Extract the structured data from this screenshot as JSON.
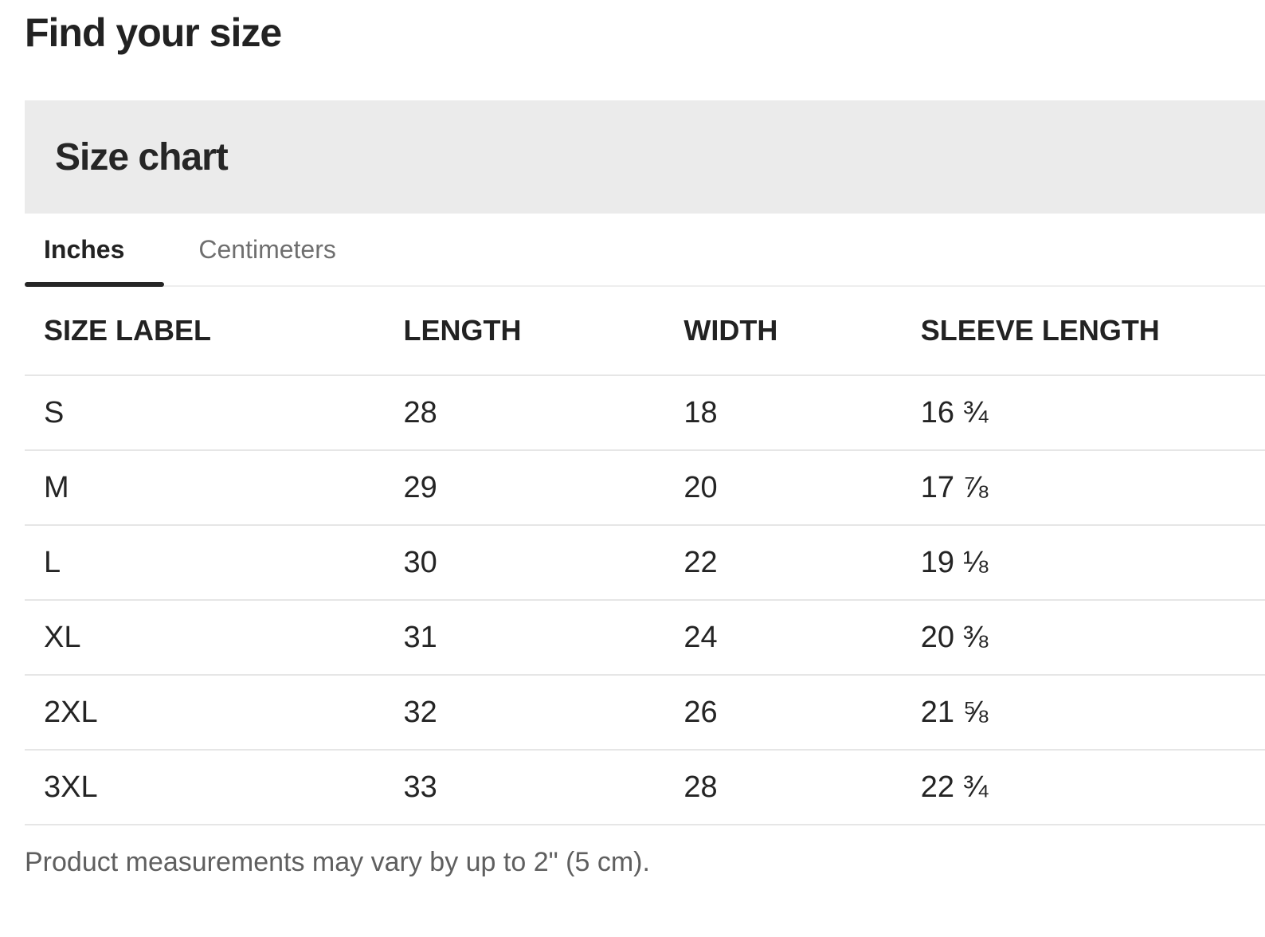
{
  "header": {
    "title": "Find your size"
  },
  "panel": {
    "title": "Size chart"
  },
  "tabs": [
    {
      "label": "Inches",
      "active": true
    },
    {
      "label": "Centimeters",
      "active": false
    }
  ],
  "table": {
    "columns": [
      "SIZE LABEL",
      "LENGTH",
      "WIDTH",
      "SLEEVE LENGTH"
    ],
    "column_widths_pct": [
      29.0,
      22.6,
      19.1,
      29.3
    ],
    "rows": [
      [
        "S",
        "28",
        "18",
        "16 ¾"
      ],
      [
        "M",
        "29",
        "20",
        "17 ⅞"
      ],
      [
        "L",
        "30",
        "22",
        "19 ⅛"
      ],
      [
        "XL",
        "31",
        "24",
        "20 ⅜"
      ],
      [
        "2XL",
        "32",
        "26",
        "21 ⅝"
      ],
      [
        "3XL",
        "33",
        "28",
        "22 ¾"
      ]
    ]
  },
  "note": "Product measurements may vary by up to 2\" (5 cm).",
  "colors": {
    "text_dark": "#222222",
    "banner_bg": "#ebebeb",
    "active_tab_underline": "#262626",
    "inactive_tab_text": "#6f6f6f",
    "note_text": "#5f5f5f",
    "row_border": "#e6e6e6",
    "tabbar_border": "#eeeeee"
  }
}
